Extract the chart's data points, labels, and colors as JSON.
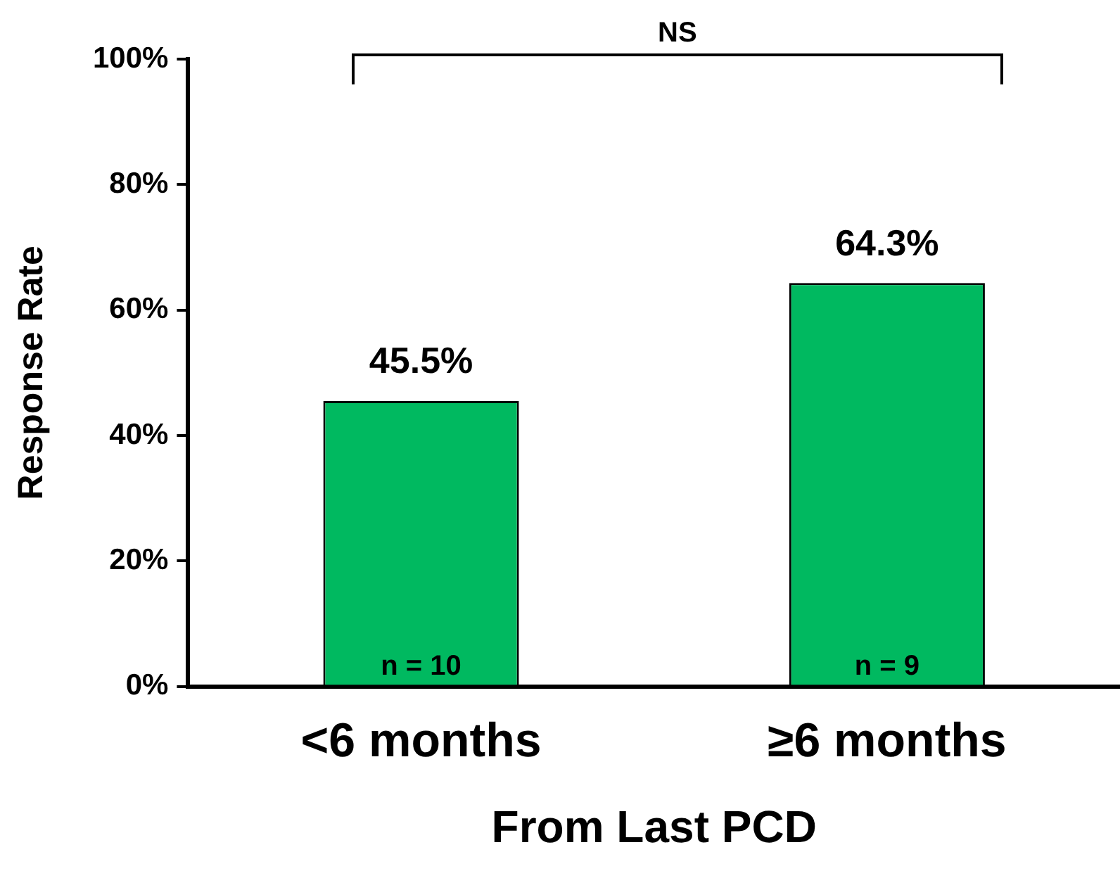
{
  "chart_data": {
    "type": "bar",
    "xlabel": "From Last PCD",
    "ylabel": "Response Rate",
    "categories": [
      "<6 months",
      "≥6 months"
    ],
    "values": [
      45.5,
      64.3
    ],
    "color": "#00b960",
    "value_labels": [
      "45.5%",
      "64.3%"
    ],
    "ylim": [
      0,
      100
    ],
    "yticks": [
      {
        "value": 0,
        "label": "0%"
      },
      {
        "value": 20,
        "label": "20%"
      },
      {
        "value": 40,
        "label": "40%"
      },
      {
        "value": 60,
        "label": "60%"
      },
      {
        "value": 80,
        "label": "80%"
      },
      {
        "value": 100,
        "label": "100%"
      }
    ],
    "grid": false,
    "legend": false,
    "annotations": [
      "NS",
      {
        "text": "n = 10",
        "x": "<6 months",
        "y": 0
      },
      {
        "text": "n = 9",
        "x": "≥6 months",
        "y": 0
      }
    ]
  }
}
